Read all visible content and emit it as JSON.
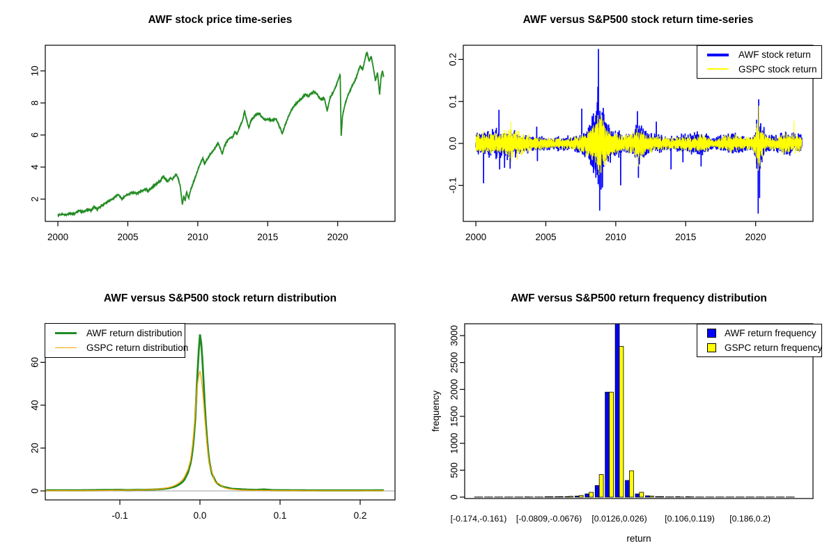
{
  "chart_data": [
    {
      "id": "price",
      "type": "line",
      "title": "AWF stock price time-series",
      "xlim": [
        1999.1,
        2024.1
      ],
      "ylim": [
        0.61,
        11.6
      ],
      "x_ticks": [
        2000,
        2005,
        2010,
        2015,
        2020
      ],
      "x_tick_labels": [
        "2000",
        "2005",
        "2010",
        "2015",
        "2020"
      ],
      "y_ticks": [
        2,
        4,
        6,
        8,
        10
      ],
      "y_tick_labels": [
        "2",
        "4",
        "6",
        "8",
        "10"
      ],
      "grid": false,
      "series": [
        {
          "name": "AWF stock price",
          "color": "#228B22",
          "line_width": 1.8,
          "noise": 0.05,
          "x": [
            2000.0,
            2000.3,
            2000.6,
            2000.9,
            2001.2,
            2001.5,
            2001.8,
            2002.1,
            2002.4,
            2002.6,
            2002.8,
            2003.0,
            2003.3,
            2003.6,
            2004.0,
            2004.3,
            2004.45,
            2004.6,
            2004.8,
            2005.0,
            2005.3,
            2005.6,
            2006.0,
            2006.3,
            2006.45,
            2006.6,
            2007.0,
            2007.3,
            2007.55,
            2007.7,
            2007.85,
            2008.0,
            2008.2,
            2008.45,
            2008.6,
            2008.75,
            2008.9,
            2009.0,
            2009.1,
            2009.2,
            2009.35,
            2009.5,
            2009.8,
            2010.1,
            2010.35,
            2010.5,
            2010.65,
            2010.9,
            2011.2,
            2011.45,
            2011.6,
            2011.75,
            2011.9,
            2012.2,
            2012.5,
            2012.65,
            2012.8,
            2013.0,
            2013.2,
            2013.35,
            2013.5,
            2013.65,
            2013.8,
            2014.0,
            2014.2,
            2014.4,
            2014.6,
            2014.8,
            2015.0,
            2015.3,
            2015.6,
            2015.9,
            2016.05,
            2016.2,
            2016.5,
            2016.8,
            2017.1,
            2017.4,
            2017.7,
            2017.9,
            2018.1,
            2018.3,
            2018.5,
            2018.7,
            2018.9,
            2019.05,
            2019.25,
            2019.45,
            2019.7,
            2019.9,
            2020.1,
            2020.18,
            2020.25,
            2020.35,
            2020.5,
            2020.7,
            2021.0,
            2021.3,
            2021.6,
            2021.8,
            2022.0,
            2022.1,
            2022.25,
            2022.4,
            2022.55,
            2022.7,
            2022.85,
            2023.0,
            2023.1,
            2023.2,
            2023.3
          ],
          "y": [
            1.0,
            1.05,
            1.02,
            1.12,
            1.1,
            1.28,
            1.22,
            1.35,
            1.3,
            1.52,
            1.38,
            1.5,
            1.7,
            1.85,
            2.05,
            2.3,
            2.15,
            2.0,
            2.2,
            2.28,
            2.4,
            2.35,
            2.5,
            2.62,
            2.5,
            2.6,
            2.95,
            3.1,
            3.45,
            3.25,
            3.1,
            3.3,
            3.25,
            3.55,
            3.3,
            2.8,
            1.65,
            2.2,
            1.9,
            2.45,
            2.05,
            2.6,
            3.3,
            4.05,
            4.55,
            4.2,
            4.45,
            4.8,
            5.15,
            5.5,
            5.2,
            4.8,
            5.3,
            5.75,
            5.9,
            6.2,
            6.05,
            6.5,
            6.9,
            7.5,
            6.9,
            6.45,
            6.9,
            7.1,
            7.3,
            7.35,
            7.1,
            6.95,
            7.0,
            6.9,
            7.0,
            6.4,
            6.1,
            6.5,
            7.2,
            7.7,
            8.05,
            8.25,
            8.55,
            8.4,
            8.6,
            8.7,
            8.6,
            8.3,
            8.2,
            8.3,
            7.5,
            8.3,
            8.7,
            9.1,
            9.6,
            9.8,
            5.9,
            7.2,
            7.8,
            8.4,
            9.0,
            9.5,
            10.3,
            10.1,
            10.9,
            11.15,
            10.6,
            10.9,
            10.2,
            9.4,
            9.9,
            8.5,
            9.6,
            10.0,
            9.6
          ]
        }
      ]
    },
    {
      "id": "returns",
      "type": "line",
      "title": "AWF versus S&P500 stock return time-series",
      "xlim": [
        1999.1,
        2024.1
      ],
      "ylim": [
        -0.1857,
        0.2338
      ],
      "x_ticks": [
        2000,
        2005,
        2010,
        2015,
        2020
      ],
      "x_tick_labels": [
        "2000",
        "2005",
        "2010",
        "2015",
        "2020"
      ],
      "y_ticks": [
        -0.1,
        0.0,
        0.1,
        0.2
      ],
      "y_tick_labels": [
        "-0.1",
        "0.0",
        "0.1",
        "0.2"
      ],
      "grid": false,
      "legend": {
        "position": "top-right",
        "items": [
          {
            "label": "AWF stock return",
            "color": "#0000FF",
            "swatch": "thick-line"
          },
          {
            "label": "GSPC stock return",
            "color": "#FFFF00",
            "swatch": "thin-line"
          }
        ]
      },
      "series": [
        {
          "name": "AWF stock return",
          "color": "#0000FF",
          "line_width": 1.7,
          "envelope_x": [
            2000,
            2000.8,
            2001.5,
            2002.3,
            2003,
            2003.8,
            2004.5,
            2005.5,
            2006.5,
            2007.3,
            2008,
            2008.6,
            2008.9,
            2009.3,
            2009.8,
            2010.5,
            2011.2,
            2011.7,
            2012.3,
            2013,
            2014,
            2015,
            2015.8,
            2016.3,
            2017,
            2017.8,
            2018.5,
            2019,
            2019.8,
            2020.15,
            2020.35,
            2020.8,
            2021.5,
            2022,
            2022.5,
            2023,
            2023.3
          ],
          "envelope_y": [
            0.013,
            0.016,
            0.02,
            0.018,
            0.014,
            0.01,
            0.009,
            0.008,
            0.009,
            0.012,
            0.02,
            0.045,
            0.05,
            0.03,
            0.018,
            0.014,
            0.012,
            0.03,
            0.015,
            0.011,
            0.009,
            0.012,
            0.015,
            0.013,
            0.007,
            0.012,
            0.014,
            0.011,
            0.009,
            0.035,
            0.025,
            0.012,
            0.01,
            0.015,
            0.014,
            0.012,
            0.012
          ],
          "spikes": [
            [
              2000.55,
              -0.095
            ],
            [
              2001.65,
              0.08
            ],
            [
              2001.7,
              -0.062
            ],
            [
              2002.05,
              -0.058
            ],
            [
              2002.45,
              -0.06
            ],
            [
              2004.35,
              0.04
            ],
            [
              2004.4,
              -0.042
            ],
            [
              2007.57,
              0.083
            ],
            [
              2008.2,
              -0.05
            ],
            [
              2008.72,
              0.135
            ],
            [
              2008.76,
              0.225
            ],
            [
              2008.85,
              -0.16
            ],
            [
              2008.95,
              -0.11
            ],
            [
              2009.05,
              -0.105
            ],
            [
              2009.15,
              0.07
            ],
            [
              2010.35,
              -0.1
            ],
            [
              2011.55,
              0.077
            ],
            [
              2011.62,
              -0.082
            ],
            [
              2012.9,
              0.052
            ],
            [
              2013.95,
              -0.062
            ],
            [
              2014.8,
              -0.045
            ],
            [
              2016.1,
              -0.055
            ],
            [
              2020.18,
              -0.167
            ],
            [
              2020.22,
              0.105
            ],
            [
              2020.28,
              -0.13
            ],
            [
              2020.32,
              -0.06
            ]
          ]
        },
        {
          "name": "GSPC stock return",
          "color": "#FFFF00",
          "line_width": 1.1,
          "envelope_x": [
            2000,
            2000.8,
            2001.5,
            2002.3,
            2002.8,
            2003.5,
            2004.5,
            2005.5,
            2006.5,
            2007.3,
            2008,
            2008.6,
            2008.9,
            2009.3,
            2009.8,
            2010.5,
            2011.2,
            2011.7,
            2012.3,
            2013,
            2014,
            2015,
            2015.8,
            2016.3,
            2017,
            2017.8,
            2018.5,
            2019,
            2019.8,
            2020.15,
            2020.35,
            2020.8,
            2021.5,
            2022,
            2022.5,
            2023,
            2023.3
          ],
          "envelope_y": [
            0.014,
            0.013,
            0.015,
            0.018,
            0.02,
            0.012,
            0.008,
            0.007,
            0.007,
            0.01,
            0.016,
            0.035,
            0.04,
            0.025,
            0.014,
            0.011,
            0.014,
            0.02,
            0.012,
            0.009,
            0.008,
            0.01,
            0.012,
            0.011,
            0.005,
            0.01,
            0.012,
            0.009,
            0.008,
            0.03,
            0.02,
            0.009,
            0.008,
            0.014,
            0.013,
            0.011,
            0.011
          ],
          "spikes": [
            [
              2002.5,
              0.052
            ],
            [
              2002.55,
              -0.045
            ],
            [
              2008.72,
              0.068
            ],
            [
              2008.8,
              -0.075
            ],
            [
              2008.95,
              -0.06
            ],
            [
              2009.1,
              0.055
            ],
            [
              2011.6,
              -0.055
            ],
            [
              2020.18,
              -0.065
            ],
            [
              2020.24,
              0.09
            ],
            [
              2020.3,
              -0.055
            ],
            [
              2022.75,
              0.054
            ]
          ]
        }
      ]
    },
    {
      "id": "density",
      "type": "line",
      "title": "AWF versus S&P500 stock return distribution",
      "xlim": [
        -0.1931,
        0.2435
      ],
      "ylim": [
        -4.2,
        78.0
      ],
      "x_ticks": [
        -0.1,
        0.0,
        0.1,
        0.2
      ],
      "x_tick_labels": [
        "-0.1",
        "0.0",
        "0.1",
        "0.2"
      ],
      "y_ticks": [
        0,
        20,
        40,
        60
      ],
      "y_tick_labels": [
        "0",
        "20",
        "40",
        "60"
      ],
      "grid": false,
      "zero_line_color": "#BEBEBE",
      "legend": {
        "position": "top-left",
        "items": [
          {
            "label": "AWF return distribution",
            "color": "#228B22",
            "swatch": "thick-line"
          },
          {
            "label": "GSPC return distribution",
            "color": "#FFA500",
            "swatch": "thin-line"
          }
        ]
      },
      "series": [
        {
          "name": "AWF return distribution",
          "color": "#228B22",
          "line_width": 2.8,
          "x": [
            -0.192,
            -0.15,
            -0.12,
            -0.1,
            -0.09,
            -0.08,
            -0.07,
            -0.06,
            -0.05,
            -0.045,
            -0.04,
            -0.035,
            -0.03,
            -0.025,
            -0.02,
            -0.015,
            -0.012,
            -0.01,
            -0.008,
            -0.006,
            -0.004,
            -0.002,
            0.0,
            0.002,
            0.004,
            0.006,
            0.008,
            0.01,
            0.012,
            0.015,
            0.02,
            0.025,
            0.03,
            0.035,
            0.04,
            0.05,
            0.06,
            0.07,
            0.08,
            0.09,
            0.1,
            0.12,
            0.15,
            0.18,
            0.2,
            0.23
          ],
          "y": [
            0.3,
            0.3,
            0.45,
            0.5,
            0.4,
            0.5,
            0.5,
            0.6,
            0.8,
            1.0,
            1.2,
            1.6,
            2.2,
            3.2,
            4.8,
            8.5,
            12.5,
            16.5,
            23.0,
            33.0,
            48.0,
            63.0,
            73.0,
            68.0,
            55.0,
            40.0,
            28.0,
            19.0,
            13.0,
            8.0,
            4.0,
            2.6,
            1.8,
            1.4,
            1.0,
            0.8,
            0.6,
            0.5,
            0.7,
            0.4,
            0.35,
            0.3,
            0.25,
            0.25,
            0.25,
            0.3
          ]
        },
        {
          "name": "GSPC return distribution",
          "color": "#FFA500",
          "line_width": 1.3,
          "x": [
            -0.192,
            -0.15,
            -0.12,
            -0.1,
            -0.09,
            -0.08,
            -0.07,
            -0.06,
            -0.05,
            -0.045,
            -0.04,
            -0.035,
            -0.03,
            -0.025,
            -0.02,
            -0.015,
            -0.012,
            -0.01,
            -0.008,
            -0.006,
            -0.004,
            -0.002,
            0.0,
            0.002,
            0.004,
            0.006,
            0.008,
            0.01,
            0.012,
            0.015,
            0.018,
            0.02,
            0.022,
            0.025,
            0.03,
            0.035,
            0.04,
            0.05,
            0.06,
            0.08,
            0.1,
            0.12,
            0.15,
            0.2,
            0.23
          ],
          "y": [
            0.1,
            0.15,
            0.2,
            0.3,
            0.35,
            0.4,
            0.5,
            0.6,
            0.9,
            1.2,
            1.5,
            2.0,
            2.8,
            4.0,
            6.0,
            10.0,
            14.0,
            19.0,
            26.0,
            36.0,
            47.0,
            53.0,
            56.0,
            52.0,
            44.0,
            34.0,
            25.0,
            17.0,
            12.0,
            9.0,
            5.0,
            3.5,
            3.8,
            3.0,
            1.5,
            1.0,
            0.8,
            0.4,
            0.3,
            0.2,
            0.15,
            0.12,
            0.1,
            0.1,
            0.1
          ]
        }
      ]
    },
    {
      "id": "histogram",
      "type": "bar",
      "title": "AWF versus S&P500 return frequency distribution",
      "xlabel": "return",
      "ylabel": "frequency",
      "ylim": [
        -26,
        3220
      ],
      "y_ticks": [
        0,
        500,
        1000,
        1500,
        2000,
        2500,
        3000
      ],
      "y_tick_labels": [
        "0",
        "500",
        "1000",
        "1500",
        "2000",
        "2500",
        "3000"
      ],
      "bin_count": 32,
      "x_tick_bins": [
        0,
        7,
        14,
        21,
        27
      ],
      "x_tick_labels": [
        "[-0.174,-0.161)",
        "[-0.0809,-0.0676)",
        "[0.0126,0.026)",
        "[0.106,0.119)",
        "[0.186,0.2)"
      ],
      "grid": false,
      "legend": {
        "position": "top-right",
        "items": [
          {
            "label": "AWF return frequency",
            "color": "#0000FF",
            "swatch": "square"
          },
          {
            "label": "GSPC return frequency",
            "color": "#FFFF00",
            "swatch": "square"
          }
        ]
      },
      "series": [
        {
          "name": "AWF return frequency",
          "color": "#0000FF",
          "values": [
            2,
            1,
            1,
            1,
            2,
            5,
            3,
            8,
            8,
            10,
            20,
            60,
            215,
            1950,
            3286,
            310,
            60,
            25,
            10,
            5,
            8,
            8,
            3,
            2,
            1,
            1,
            1,
            2,
            1,
            1,
            1,
            2
          ]
        },
        {
          "name": "GSPC return frequency",
          "color": "#FFFF00",
          "values": [
            1,
            1,
            1,
            1,
            1,
            3,
            2,
            8,
            10,
            15,
            30,
            90,
            420,
            1950,
            2800,
            490,
            90,
            20,
            10,
            5,
            3,
            5,
            2,
            1,
            1,
            1,
            1,
            1,
            1,
            1,
            1,
            1
          ]
        }
      ]
    }
  ]
}
